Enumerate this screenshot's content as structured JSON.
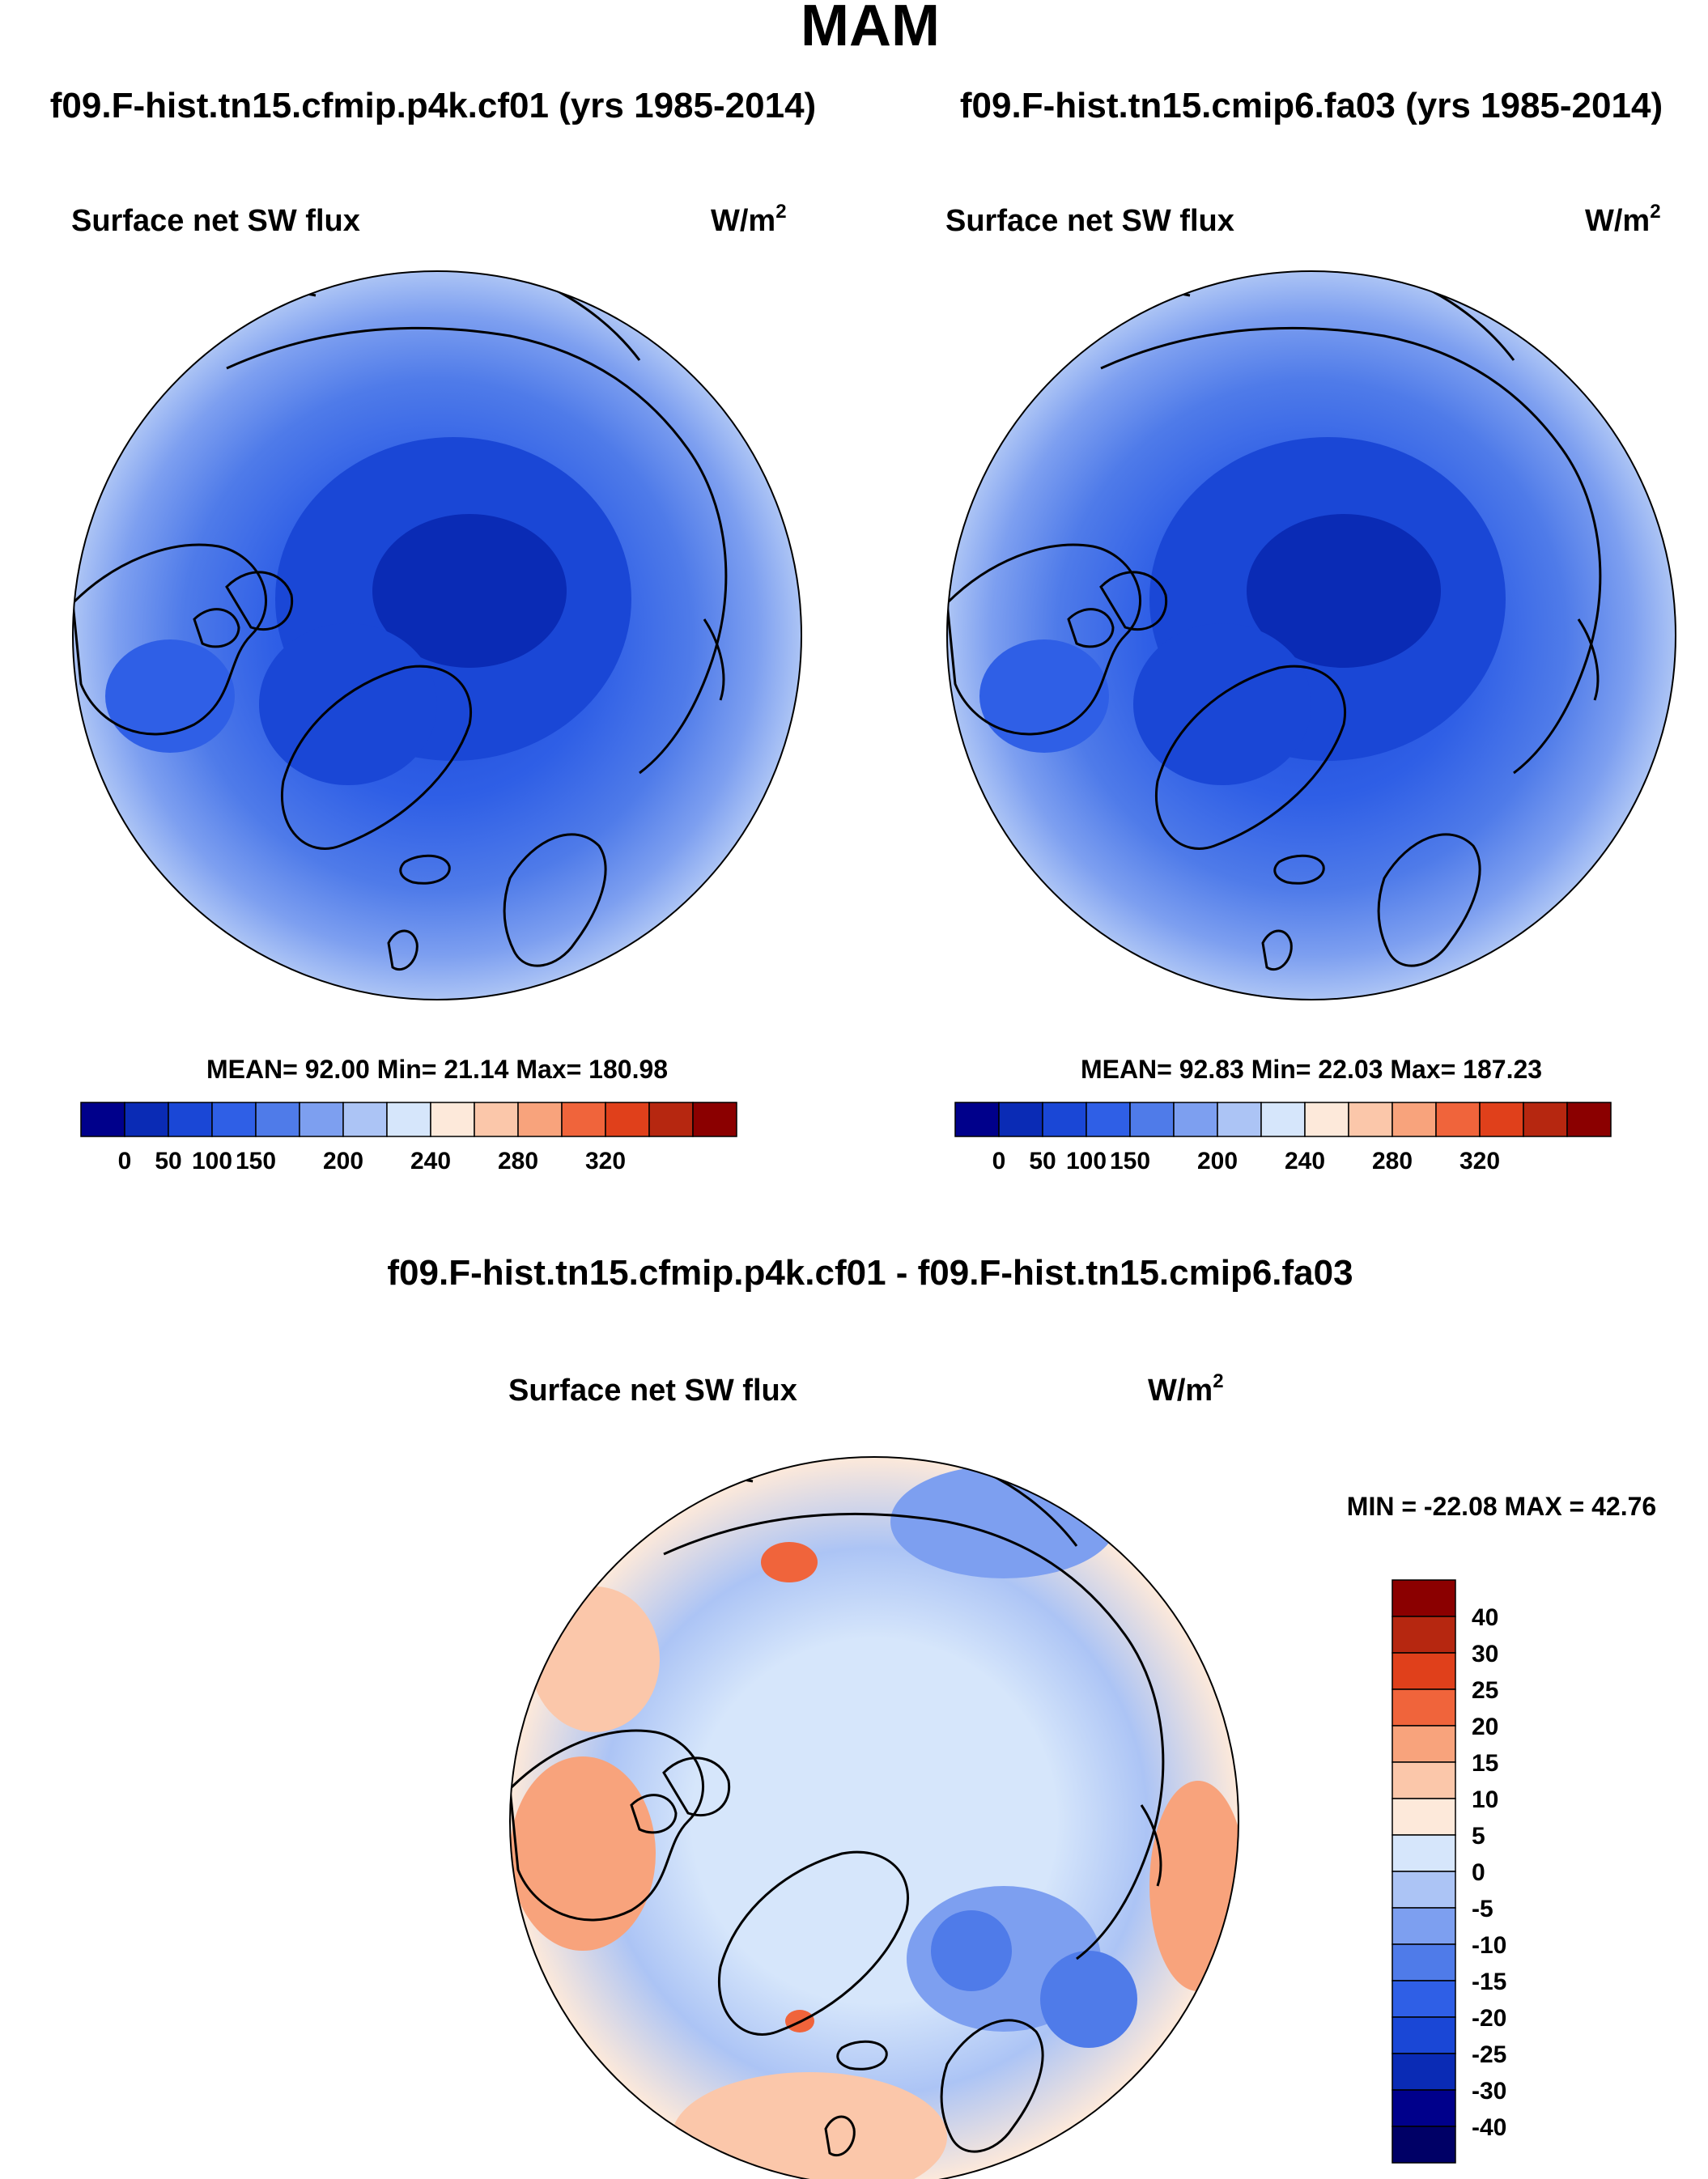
{
  "figure": {
    "season": "MAM",
    "colors": {
      "land_outline": "#000000",
      "background": "#ffffff"
    }
  },
  "panels": [
    {
      "id": "left",
      "case_title": "f09.F-hist.tn15.cfmip.p4k.cf01 (yrs 1985-2014)",
      "variable": "Surface net SW flux",
      "units": "W/m",
      "units_exp": "2",
      "stats": "MEAN=  92.00  Min=  21.14  Max= 180.98"
    },
    {
      "id": "right",
      "case_title": "f09.F-hist.tn15.cmip6.fa03 (yrs 1985-2014)",
      "variable": "Surface net SW flux",
      "units": "W/m",
      "units_exp": "2",
      "stats": "MEAN=  92.83  Min=  22.03  Max= 187.23"
    }
  ],
  "diff_panel": {
    "title": "f09.F-hist.tn15.cfmip.p4k.cf01 - f09.F-hist.tn15.cmip6.fa03",
    "variable": "Surface net SW flux",
    "units": "W/m",
    "units_exp": "2",
    "stats": "MIN = -22.08 MAX =  42.76"
  },
  "colorbars": {
    "absolute": {
      "labels": [
        "0",
        "50",
        "100",
        "150",
        "200",
        "240",
        "280",
        "320"
      ],
      "colors": [
        "#00008b",
        "#0a2bb5",
        "#1a47d6",
        "#2f5fe6",
        "#4f7be9",
        "#7d9ff0",
        "#acc4f5",
        "#d6e6fb",
        "#fde9da",
        "#fbc7aa",
        "#f8a37c",
        "#f0643b",
        "#e0401b",
        "#b62710",
        "#8b0000"
      ]
    },
    "difference": {
      "labels": [
        "40",
        "30",
        "25",
        "20",
        "15",
        "10",
        "5",
        "0",
        "-5",
        "-10",
        "-15",
        "-20",
        "-25",
        "-30",
        "-40"
      ],
      "colors": [
        "#8b0000",
        "#b62710",
        "#e0401b",
        "#f0643b",
        "#f8a37c",
        "#fbc7aa",
        "#fde9da",
        "#d6e6fb",
        "#acc4f5",
        "#7d9ff0",
        "#4f7be9",
        "#2f5fe6",
        "#1a47d6",
        "#0a2bb5",
        "#00008b",
        "#000066"
      ]
    }
  }
}
